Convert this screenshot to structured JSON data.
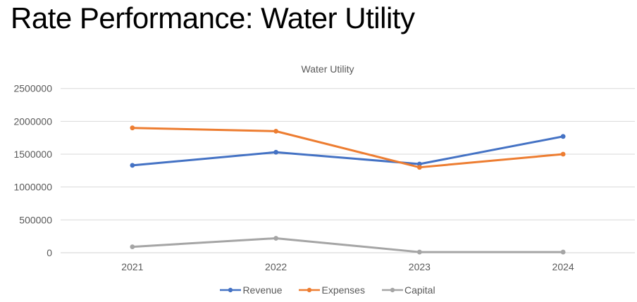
{
  "slide": {
    "title": "Rate Performance: Water Utility"
  },
  "chart_data": {
    "type": "line",
    "title": "Water Utility",
    "categories": [
      "2021",
      "2022",
      "2023",
      "2024"
    ],
    "series": [
      {
        "name": "Revenue",
        "color": "#4472C4",
        "values": [
          1330000,
          1530000,
          1350000,
          1770000
        ]
      },
      {
        "name": "Expenses",
        "color": "#ED7D31",
        "values": [
          1900000,
          1850000,
          1300000,
          1500000
        ]
      },
      {
        "name": "Capital",
        "color": "#A5A5A5",
        "values": [
          90000,
          220000,
          10000,
          10000
        ]
      }
    ],
    "yticks": [
      0,
      500000,
      1000000,
      1500000,
      2000000,
      2500000
    ],
    "ylim": [
      0,
      2500000
    ],
    "grid": true,
    "legend_position": "bottom",
    "colors": {
      "gridline": "#D9D9D9",
      "axis_line": "#D0D0D0",
      "tick_label": "#595959",
      "chart_title": "#595959",
      "slide_title": "#000000"
    }
  }
}
